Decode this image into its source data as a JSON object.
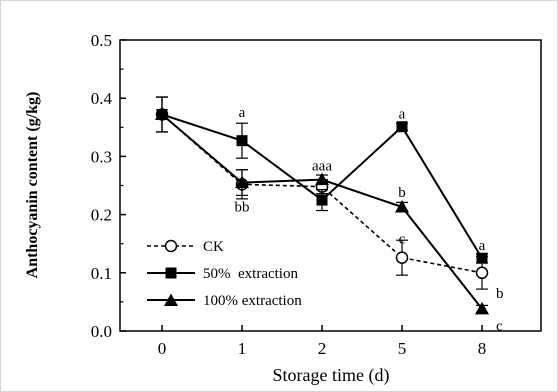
{
  "chart_data": {
    "type": "line",
    "title": "",
    "xlabel": "Storage time (d)",
    "ylabel": "Anthocyanin content (g/kg)",
    "categories": [
      "0",
      "1",
      "2",
      "5",
      "8"
    ],
    "ylim": [
      0,
      0.5
    ],
    "yticks": [
      "0.0",
      "0.1",
      "0.2",
      "0.3",
      "0.4",
      "0.5"
    ],
    "grid": false,
    "legend_position": "bottom-left",
    "series": [
      {
        "name": "CK",
        "values": [
          0.372,
          0.252,
          0.248,
          0.126,
          0.1
        ],
        "errors": [
          0.03,
          0.025,
          0.012,
          0.03,
          0.028
        ],
        "marker": "open-circle",
        "line_style": "dashed",
        "color": "#000000"
      },
      {
        "name": "50%  extraction",
        "values": [
          0.372,
          0.327,
          0.225,
          0.351,
          0.125
        ],
        "errors": [
          0.03,
          0.03,
          0.018,
          0.006,
          0.008
        ],
        "marker": "filled-square",
        "line_style": "solid",
        "color": "#000000"
      },
      {
        "name": "100% extraction",
        "values": [
          0.372,
          0.255,
          0.26,
          0.213,
          0.038
        ],
        "errors": [
          0.03,
          0.022,
          0.008,
          0.008,
          0.006
        ],
        "marker": "filled-triangle",
        "line_style": "solid",
        "color": "#000000"
      }
    ],
    "annotations": [
      {
        "text": "a",
        "x": "1",
        "y": 0.368,
        "baseline": "bottom"
      },
      {
        "text": "bb",
        "x": "1",
        "y": 0.224,
        "baseline": "top"
      },
      {
        "text": "aaa",
        "x": "2",
        "y": 0.276,
        "baseline": "bottom"
      },
      {
        "text": "a",
        "x": "5",
        "y": 0.365,
        "baseline": "bottom"
      },
      {
        "text": "b",
        "x": "5",
        "y": 0.23,
        "baseline": "bottom"
      },
      {
        "text": "c",
        "x": "5",
        "y": 0.15,
        "baseline": "bottom"
      },
      {
        "text": "a",
        "x": "8",
        "y": 0.139,
        "baseline": "bottom"
      },
      {
        "text": "b",
        "x": "8",
        "y": 0.076,
        "baseline": "top",
        "side": "right"
      },
      {
        "text": "c",
        "x": "8",
        "y": 0.02,
        "baseline": "top",
        "side": "right"
      }
    ]
  }
}
